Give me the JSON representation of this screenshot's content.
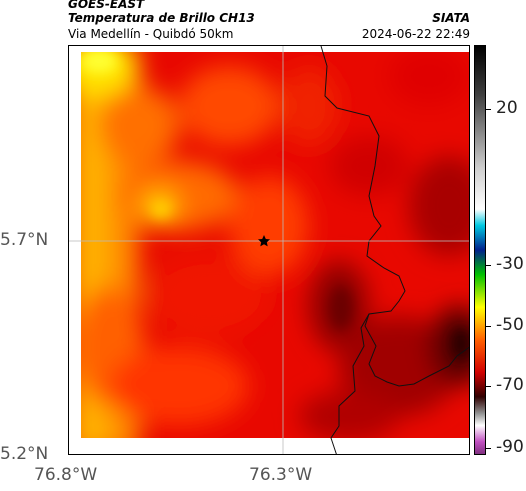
{
  "header": {
    "satellite": "GOES-EAST",
    "product": "Temperatura de Brillo CH13",
    "region": "Via Medellín - Quibdó 50km",
    "source": "SIATA",
    "datetime": "2024-06-22 22:49"
  },
  "axes": {
    "lon_ticks": [
      "76.8°W",
      "76.3°W"
    ],
    "lat_ticks": [
      "5.7°N",
      "5.2°N"
    ]
  },
  "colorbar": {
    "ticks": [
      "20",
      "-30",
      "-50",
      "-70",
      "-90"
    ],
    "values": [
      20,
      -30,
      -50,
      -70,
      -90
    ],
    "range": [
      -95,
      40
    ]
  },
  "map": {
    "marker": "star-marker",
    "colors": {
      "hot": "#ffff00",
      "warm": "#ff8c00",
      "mid": "#ff3000",
      "cool": "#e00000",
      "cold": "#7a0000"
    }
  }
}
